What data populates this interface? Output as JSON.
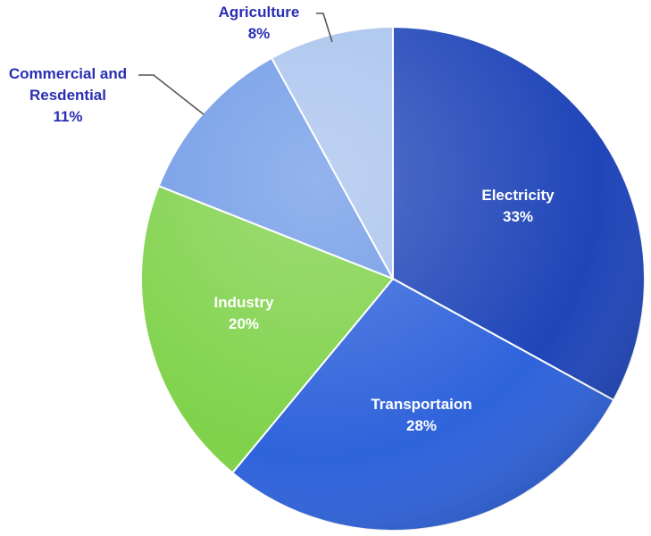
{
  "chart_data": {
    "type": "pie",
    "title": "",
    "slices": [
      {
        "label": "Electricity",
        "value": 33,
        "value_label": "33%",
        "color": "#1f45b8",
        "label_position": "inside"
      },
      {
        "label": "Transportaion",
        "value": 28,
        "value_label": "28%",
        "color": "#2f63db",
        "label_position": "inside"
      },
      {
        "label": "Industry",
        "value": 20,
        "value_label": "20%",
        "color": "#7fd24a",
        "label_position": "inside"
      },
      {
        "label": "Commercial and Resdential",
        "label_lines": [
          "Commercial and",
          "Resdential"
        ],
        "value": 11,
        "value_label": "11%",
        "color": "#6f9ae6",
        "label_position": "outside"
      },
      {
        "label": "Agriculture",
        "value": 8,
        "value_label": "8%",
        "color": "#a9c3ee",
        "label_position": "outside"
      }
    ],
    "start_direction": "top",
    "direction": "clockwise",
    "label_text_color_inside": "#ffffff",
    "label_text_color_outside": "#2a2fb3",
    "slice_border_color": "#ffffff"
  }
}
